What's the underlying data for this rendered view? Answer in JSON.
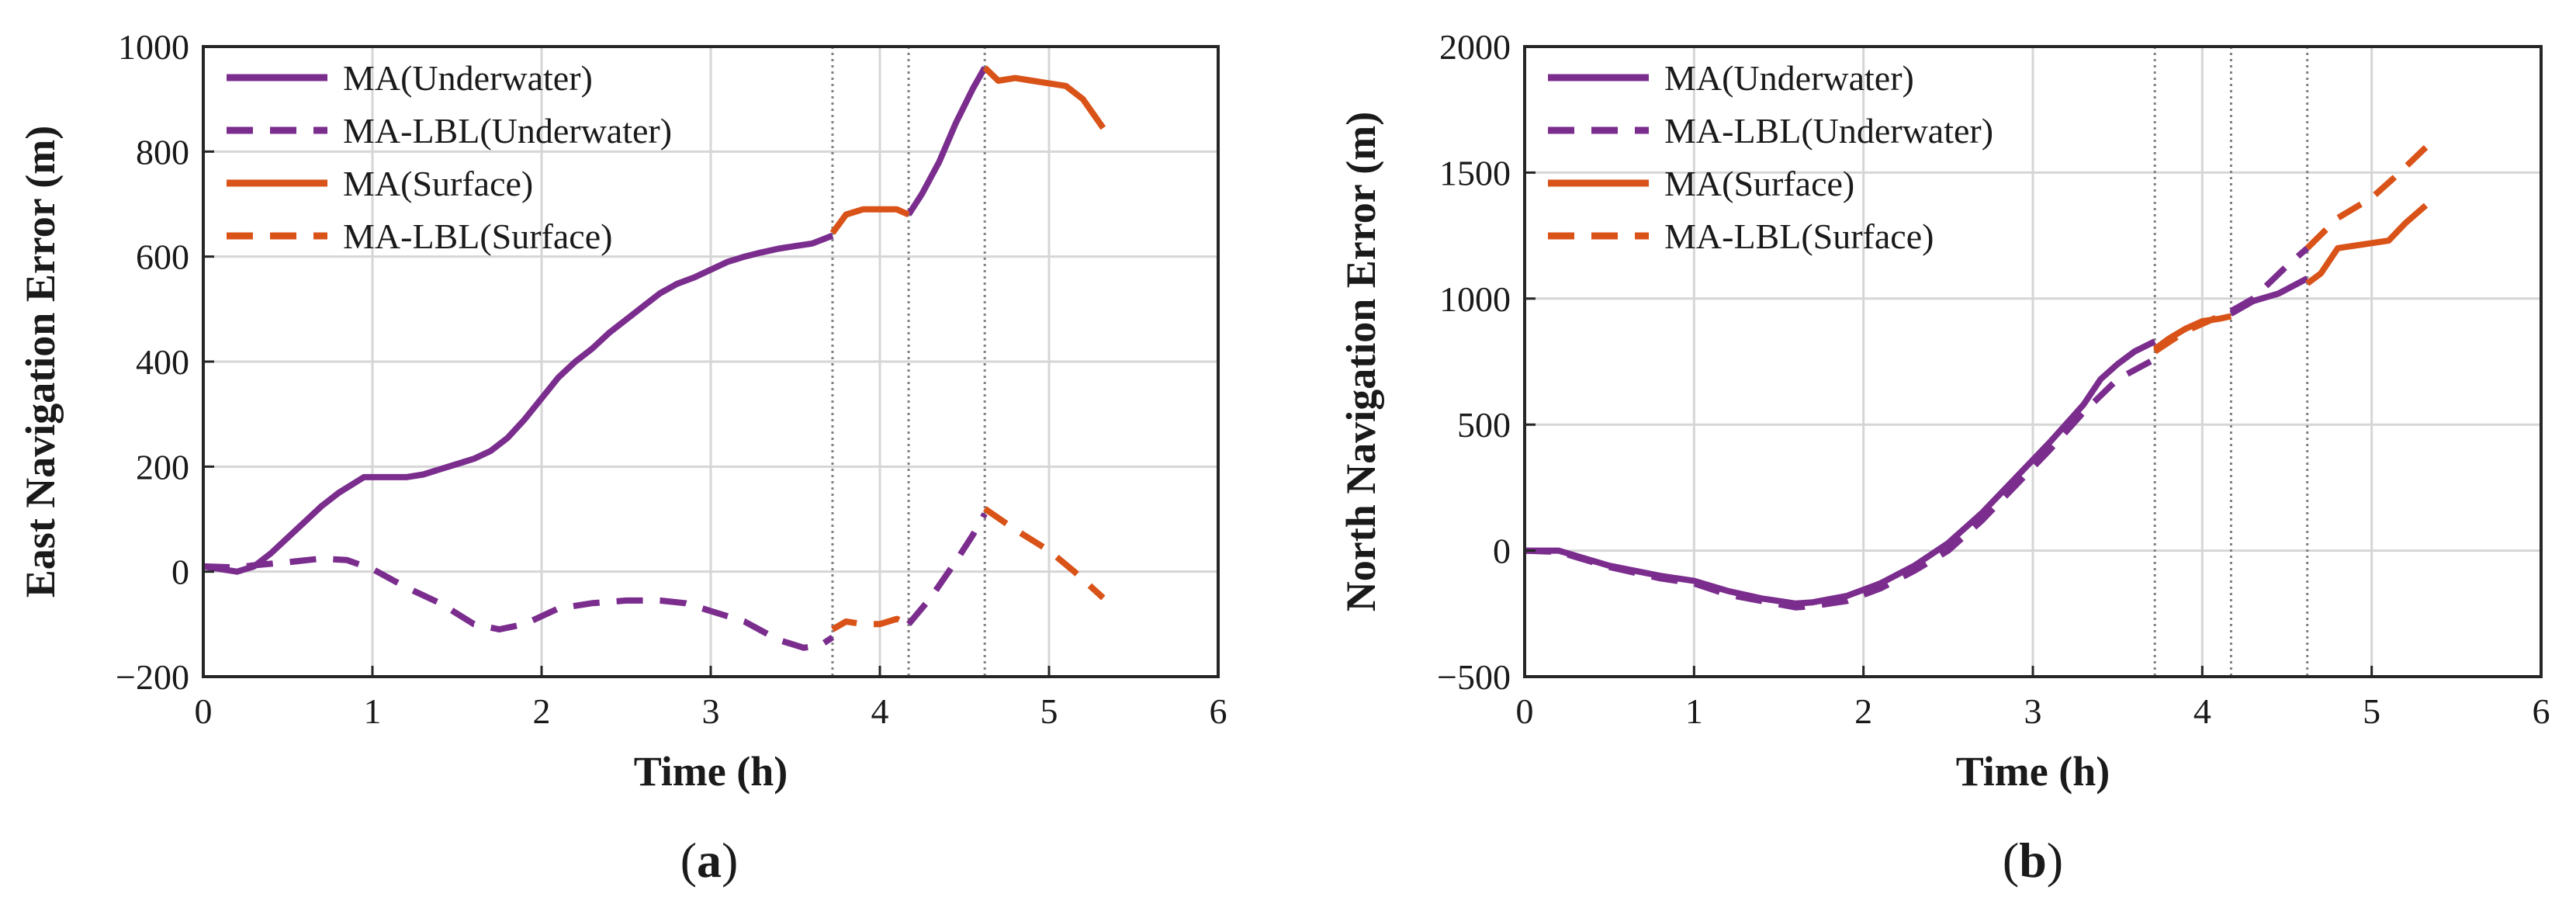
{
  "colors": {
    "underwater": "#7b2d8e",
    "surface": "#d95319",
    "grid": "#d6d6d6",
    "axis": "#262626",
    "divider": "#808080"
  },
  "chart_data": [
    {
      "type": "line",
      "panel_label": "(a)",
      "panel_letter": "a",
      "xlabel": "Time (h)",
      "ylabel": "East Navigation Error (m)",
      "xlim": [
        0,
        6
      ],
      "ylim": [
        -200,
        1000
      ],
      "xticks": [
        0,
        1,
        2,
        3,
        4,
        5,
        6
      ],
      "yticks": [
        -200,
        0,
        200,
        400,
        600,
        800,
        1000
      ],
      "x_tick_labels": [
        "0",
        "1",
        "2",
        "3",
        "4",
        "5",
        "6"
      ],
      "y_tick_labels": [
        "−200",
        "0",
        "200",
        "400",
        "600",
        "800",
        "1000"
      ],
      "grid": true,
      "legend_position": "top-left",
      "vertical_lines_x": [
        3.72,
        4.17,
        4.62
      ],
      "series": [
        {
          "name": "MA(Underwater)",
          "color_key": "underwater",
          "style": "solid",
          "segments": [
            [
              [
                0,
                10
              ],
              [
                0.1,
                5
              ],
              [
                0.2,
                0
              ],
              [
                0.3,
                10
              ],
              [
                0.4,
                35
              ],
              [
                0.5,
                65
              ],
              [
                0.6,
                95
              ],
              [
                0.7,
                125
              ],
              [
                0.8,
                150
              ],
              [
                0.9,
                170
              ],
              [
                0.95,
                180
              ],
              [
                1.0,
                180
              ],
              [
                1.1,
                180
              ],
              [
                1.2,
                180
              ],
              [
                1.3,
                185
              ],
              [
                1.4,
                195
              ],
              [
                1.5,
                205
              ],
              [
                1.6,
                215
              ],
              [
                1.7,
                230
              ],
              [
                1.8,
                255
              ],
              [
                1.9,
                290
              ],
              [
                2.0,
                330
              ],
              [
                2.1,
                370
              ],
              [
                2.2,
                400
              ],
              [
                2.3,
                425
              ],
              [
                2.4,
                455
              ],
              [
                2.5,
                480
              ],
              [
                2.6,
                505
              ],
              [
                2.7,
                530
              ],
              [
                2.8,
                548
              ],
              [
                2.9,
                560
              ],
              [
                3.0,
                575
              ],
              [
                3.1,
                590
              ],
              [
                3.2,
                600
              ],
              [
                3.3,
                608
              ],
              [
                3.4,
                615
              ],
              [
                3.5,
                620
              ],
              [
                3.6,
                625
              ],
              [
                3.72,
                640
              ]
            ],
            [
              [
                4.17,
                680
              ],
              [
                4.25,
                720
              ],
              [
                4.35,
                780
              ],
              [
                4.45,
                855
              ],
              [
                4.55,
                920
              ],
              [
                4.62,
                960
              ]
            ]
          ]
        },
        {
          "name": "MA-LBL(Underwater)",
          "color_key": "underwater",
          "style": "dashed",
          "segments": [
            [
              [
                0,
                10
              ],
              [
                0.2,
                8
              ],
              [
                0.3,
                12
              ],
              [
                0.5,
                18
              ],
              [
                0.7,
                25
              ],
              [
                0.85,
                22
              ],
              [
                1.0,
                5
              ],
              [
                1.2,
                -30
              ],
              [
                1.4,
                -60
              ],
              [
                1.6,
                -100
              ],
              [
                1.75,
                -110
              ],
              [
                1.9,
                -100
              ],
              [
                2.1,
                -70
              ],
              [
                2.3,
                -60
              ],
              [
                2.5,
                -55
              ],
              [
                2.7,
                -55
              ],
              [
                2.85,
                -60
              ],
              [
                3.0,
                -75
              ],
              [
                3.2,
                -95
              ],
              [
                3.4,
                -130
              ],
              [
                3.55,
                -145
              ],
              [
                3.65,
                -140
              ],
              [
                3.72,
                -125
              ]
            ],
            [
              [
                4.17,
                -100
              ],
              [
                4.3,
                -50
              ],
              [
                4.45,
                20
              ],
              [
                4.55,
                70
              ],
              [
                4.62,
                110
              ]
            ]
          ]
        },
        {
          "name": "MA(Surface)",
          "color_key": "surface",
          "style": "solid",
          "segments": [
            [
              [
                3.72,
                645
              ],
              [
                3.8,
                680
              ],
              [
                3.9,
                690
              ],
              [
                4.0,
                690
              ],
              [
                4.1,
                690
              ],
              [
                4.17,
                680
              ]
            ],
            [
              [
                4.62,
                960
              ],
              [
                4.7,
                935
              ],
              [
                4.8,
                940
              ],
              [
                4.9,
                935
              ],
              [
                5.0,
                930
              ],
              [
                5.1,
                925
              ],
              [
                5.2,
                900
              ],
              [
                5.32,
                845
              ]
            ]
          ]
        },
        {
          "name": "MA-LBL(Surface)",
          "color_key": "surface",
          "style": "dashed",
          "segments": [
            [
              [
                3.72,
                -110
              ],
              [
                3.8,
                -95
              ],
              [
                3.9,
                -100
              ],
              [
                4.0,
                -100
              ],
              [
                4.1,
                -90
              ],
              [
                4.17,
                -100
              ]
            ],
            [
              [
                4.62,
                120
              ],
              [
                4.8,
                80
              ],
              [
                5.0,
                40
              ],
              [
                5.15,
                0
              ],
              [
                5.32,
                -50
              ]
            ]
          ]
        }
      ]
    },
    {
      "type": "line",
      "panel_label": "(b)",
      "panel_letter": "b",
      "xlabel": "Time (h)",
      "ylabel": "North Navigation Error (m)",
      "xlim": [
        0,
        6
      ],
      "ylim": [
        -500,
        2000
      ],
      "xticks": [
        0,
        1,
        2,
        3,
        4,
        5,
        6
      ],
      "yticks": [
        -500,
        0,
        500,
        1000,
        1500,
        2000
      ],
      "x_tick_labels": [
        "0",
        "1",
        "2",
        "3",
        "4",
        "5",
        "6"
      ],
      "y_tick_labels": [
        "−500",
        "0",
        "500",
        "1000",
        "1500",
        "2000"
      ],
      "grid": true,
      "legend_position": "top-left",
      "vertical_lines_x": [
        3.72,
        4.17,
        4.62
      ],
      "series": [
        {
          "name": "MA(Underwater)",
          "color_key": "underwater",
          "style": "solid",
          "segments": [
            [
              [
                0,
                0
              ],
              [
                0.2,
                0
              ],
              [
                0.3,
                -20
              ],
              [
                0.5,
                -60
              ],
              [
                0.8,
                -100
              ],
              [
                1.0,
                -120
              ],
              [
                1.2,
                -160
              ],
              [
                1.4,
                -190
              ],
              [
                1.6,
                -210
              ],
              [
                1.7,
                -205
              ],
              [
                1.9,
                -180
              ],
              [
                2.1,
                -130
              ],
              [
                2.3,
                -60
              ],
              [
                2.5,
                30
              ],
              [
                2.7,
                150
              ],
              [
                2.9,
                290
              ],
              [
                3.1,
                430
              ],
              [
                3.3,
                580
              ],
              [
                3.4,
                680
              ],
              [
                3.5,
                740
              ],
              [
                3.6,
                790
              ],
              [
                3.72,
                830
              ]
            ],
            [
              [
                4.17,
                940
              ],
              [
                4.3,
                990
              ],
              [
                4.45,
                1020
              ],
              [
                4.62,
                1080
              ]
            ]
          ]
        },
        {
          "name": "MA-LBL(Underwater)",
          "color_key": "underwater",
          "style": "dashed",
          "segments": [
            [
              [
                0,
                0
              ],
              [
                0.2,
                -5
              ],
              [
                0.3,
                -25
              ],
              [
                0.5,
                -65
              ],
              [
                0.8,
                -110
              ],
              [
                1.0,
                -130
              ],
              [
                1.2,
                -175
              ],
              [
                1.4,
                -200
              ],
              [
                1.6,
                -225
              ],
              [
                1.7,
                -220
              ],
              [
                1.9,
                -200
              ],
              [
                2.1,
                -150
              ],
              [
                2.3,
                -80
              ],
              [
                2.5,
                0
              ],
              [
                2.7,
                120
              ],
              [
                2.9,
                260
              ],
              [
                3.1,
                400
              ],
              [
                3.3,
                550
              ],
              [
                3.5,
                680
              ],
              [
                3.72,
                760
              ]
            ],
            [
              [
                4.17,
                950
              ],
              [
                4.3,
                1000
              ],
              [
                4.5,
                1130
              ],
              [
                4.62,
                1200
              ]
            ]
          ]
        },
        {
          "name": "MA(Surface)",
          "color_key": "surface",
          "style": "solid",
          "segments": [
            [
              [
                3.72,
                800
              ],
              [
                3.8,
                840
              ],
              [
                3.9,
                880
              ],
              [
                4.0,
                910
              ],
              [
                4.1,
                920
              ],
              [
                4.17,
                930
              ]
            ],
            [
              [
                4.62,
                1060
              ],
              [
                4.7,
                1100
              ],
              [
                4.8,
                1200
              ],
              [
                4.9,
                1210
              ],
              [
                5.0,
                1220
              ],
              [
                5.1,
                1230
              ],
              [
                5.2,
                1300
              ],
              [
                5.32,
                1370
              ]
            ]
          ]
        },
        {
          "name": "MA-LBL(Surface)",
          "color_key": "surface",
          "style": "dashed",
          "segments": [
            [
              [
                3.72,
                790
              ],
              [
                3.9,
                870
              ],
              [
                4.0,
                900
              ],
              [
                4.17,
                950
              ]
            ],
            [
              [
                4.62,
                1200
              ],
              [
                4.8,
                1320
              ],
              [
                5.0,
                1400
              ],
              [
                5.15,
                1490
              ],
              [
                5.32,
                1600
              ]
            ]
          ]
        }
      ]
    }
  ]
}
